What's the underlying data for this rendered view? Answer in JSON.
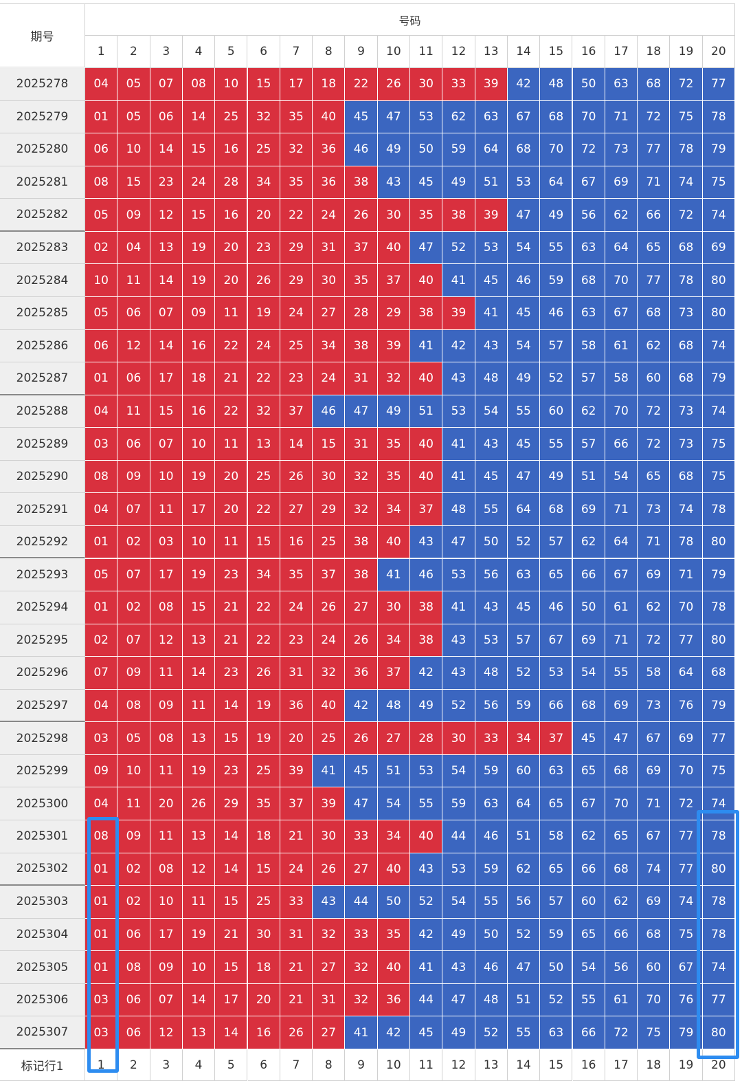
{
  "header": {
    "title": "期号",
    "group": "号码",
    "columns": [
      "1",
      "2",
      "3",
      "4",
      "5",
      "6",
      "7",
      "8",
      "9",
      "10",
      "11",
      "12",
      "13",
      "14",
      "15",
      "16",
      "17",
      "18",
      "19",
      "20"
    ]
  },
  "settings": {
    "split": 40,
    "low_color": "#d9303e",
    "high_color": "#3b66c0"
  },
  "rows": [
    {
      "period": "2025278",
      "numbers": [
        "04",
        "05",
        "07",
        "08",
        "10",
        "15",
        "17",
        "18",
        "22",
        "26",
        "30",
        "33",
        "39",
        "42",
        "48",
        "50",
        "63",
        "68",
        "72",
        "77"
      ]
    },
    {
      "period": "2025279",
      "numbers": [
        "01",
        "05",
        "06",
        "14",
        "25",
        "32",
        "35",
        "40",
        "45",
        "47",
        "53",
        "62",
        "63",
        "67",
        "68",
        "70",
        "71",
        "72",
        "75",
        "78"
      ]
    },
    {
      "period": "2025280",
      "numbers": [
        "06",
        "10",
        "14",
        "15",
        "16",
        "25",
        "32",
        "36",
        "46",
        "49",
        "50",
        "59",
        "64",
        "68",
        "70",
        "72",
        "73",
        "77",
        "78",
        "79"
      ]
    },
    {
      "period": "2025281",
      "numbers": [
        "08",
        "15",
        "23",
        "24",
        "28",
        "34",
        "35",
        "36",
        "38",
        "43",
        "45",
        "49",
        "51",
        "53",
        "64",
        "67",
        "69",
        "71",
        "74",
        "75"
      ]
    },
    {
      "period": "2025282",
      "numbers": [
        "05",
        "09",
        "12",
        "15",
        "16",
        "20",
        "22",
        "24",
        "26",
        "30",
        "35",
        "38",
        "39",
        "47",
        "49",
        "56",
        "62",
        "66",
        "72",
        "74"
      ]
    },
    {
      "period": "2025283",
      "numbers": [
        "02",
        "04",
        "13",
        "19",
        "20",
        "23",
        "29",
        "31",
        "37",
        "40",
        "47",
        "52",
        "53",
        "54",
        "55",
        "63",
        "64",
        "65",
        "68",
        "69"
      ]
    },
    {
      "period": "2025284",
      "numbers": [
        "10",
        "11",
        "14",
        "19",
        "20",
        "26",
        "29",
        "30",
        "35",
        "37",
        "40",
        "41",
        "45",
        "46",
        "59",
        "68",
        "70",
        "77",
        "78",
        "80"
      ]
    },
    {
      "period": "2025285",
      "numbers": [
        "05",
        "06",
        "07",
        "09",
        "11",
        "19",
        "24",
        "27",
        "28",
        "29",
        "38",
        "39",
        "41",
        "45",
        "46",
        "63",
        "67",
        "68",
        "73",
        "80"
      ]
    },
    {
      "period": "2025286",
      "numbers": [
        "06",
        "12",
        "14",
        "16",
        "22",
        "24",
        "25",
        "34",
        "38",
        "39",
        "41",
        "42",
        "43",
        "54",
        "57",
        "58",
        "61",
        "62",
        "68",
        "74"
      ]
    },
    {
      "period": "2025287",
      "numbers": [
        "01",
        "06",
        "17",
        "18",
        "21",
        "22",
        "23",
        "24",
        "31",
        "32",
        "40",
        "43",
        "48",
        "49",
        "52",
        "57",
        "58",
        "60",
        "68",
        "79"
      ]
    },
    {
      "period": "2025288",
      "numbers": [
        "04",
        "11",
        "15",
        "16",
        "22",
        "32",
        "37",
        "46",
        "47",
        "49",
        "51",
        "53",
        "54",
        "55",
        "60",
        "62",
        "70",
        "72",
        "73",
        "74"
      ]
    },
    {
      "period": "2025289",
      "numbers": [
        "03",
        "06",
        "07",
        "10",
        "11",
        "13",
        "14",
        "15",
        "31",
        "35",
        "40",
        "41",
        "43",
        "45",
        "55",
        "57",
        "66",
        "72",
        "73",
        "75"
      ]
    },
    {
      "period": "2025290",
      "numbers": [
        "08",
        "09",
        "10",
        "19",
        "20",
        "25",
        "26",
        "30",
        "32",
        "35",
        "40",
        "41",
        "45",
        "47",
        "49",
        "51",
        "54",
        "65",
        "68",
        "75"
      ]
    },
    {
      "period": "2025291",
      "numbers": [
        "04",
        "07",
        "11",
        "17",
        "20",
        "22",
        "27",
        "29",
        "32",
        "34",
        "37",
        "48",
        "55",
        "64",
        "68",
        "69",
        "71",
        "73",
        "74",
        "78"
      ]
    },
    {
      "period": "2025292",
      "numbers": [
        "01",
        "02",
        "03",
        "10",
        "11",
        "15",
        "16",
        "25",
        "38",
        "40",
        "43",
        "47",
        "50",
        "52",
        "57",
        "62",
        "64",
        "71",
        "78",
        "80"
      ]
    },
    {
      "period": "2025293",
      "numbers": [
        "05",
        "07",
        "17",
        "19",
        "23",
        "34",
        "35",
        "37",
        "38",
        "41",
        "46",
        "53",
        "56",
        "63",
        "65",
        "66",
        "67",
        "69",
        "71",
        "79"
      ]
    },
    {
      "period": "2025294",
      "numbers": [
        "01",
        "02",
        "08",
        "15",
        "21",
        "22",
        "24",
        "26",
        "27",
        "30",
        "38",
        "41",
        "43",
        "45",
        "46",
        "50",
        "61",
        "62",
        "70",
        "78"
      ]
    },
    {
      "period": "2025295",
      "numbers": [
        "02",
        "07",
        "12",
        "13",
        "21",
        "22",
        "23",
        "24",
        "26",
        "34",
        "38",
        "43",
        "53",
        "57",
        "67",
        "69",
        "71",
        "72",
        "77",
        "80"
      ]
    },
    {
      "period": "2025296",
      "numbers": [
        "07",
        "09",
        "11",
        "14",
        "23",
        "26",
        "31",
        "32",
        "36",
        "37",
        "42",
        "43",
        "48",
        "52",
        "53",
        "54",
        "55",
        "58",
        "64",
        "68"
      ]
    },
    {
      "period": "2025297",
      "numbers": [
        "04",
        "08",
        "09",
        "11",
        "14",
        "19",
        "36",
        "40",
        "42",
        "48",
        "49",
        "52",
        "56",
        "59",
        "66",
        "68",
        "69",
        "73",
        "76",
        "79"
      ]
    },
    {
      "period": "2025298",
      "numbers": [
        "03",
        "05",
        "08",
        "13",
        "15",
        "19",
        "20",
        "25",
        "26",
        "27",
        "28",
        "30",
        "33",
        "34",
        "37",
        "45",
        "47",
        "67",
        "69",
        "77"
      ]
    },
    {
      "period": "2025299",
      "numbers": [
        "09",
        "10",
        "11",
        "19",
        "23",
        "25",
        "39",
        "41",
        "45",
        "51",
        "53",
        "54",
        "59",
        "60",
        "63",
        "65",
        "68",
        "69",
        "70",
        "75"
      ]
    },
    {
      "period": "2025300",
      "numbers": [
        "04",
        "11",
        "20",
        "26",
        "29",
        "35",
        "37",
        "39",
        "47",
        "54",
        "55",
        "59",
        "63",
        "64",
        "65",
        "67",
        "70",
        "71",
        "72",
        "74"
      ]
    },
    {
      "period": "2025301",
      "numbers": [
        "08",
        "09",
        "11",
        "13",
        "14",
        "18",
        "21",
        "30",
        "33",
        "34",
        "40",
        "44",
        "46",
        "51",
        "58",
        "62",
        "65",
        "67",
        "77",
        "78"
      ]
    },
    {
      "period": "2025302",
      "numbers": [
        "01",
        "02",
        "08",
        "12",
        "14",
        "15",
        "24",
        "26",
        "27",
        "40",
        "43",
        "53",
        "59",
        "62",
        "65",
        "66",
        "68",
        "74",
        "77",
        "80"
      ]
    },
    {
      "period": "2025303",
      "numbers": [
        "01",
        "02",
        "10",
        "11",
        "15",
        "25",
        "33",
        "43",
        "44",
        "50",
        "52",
        "54",
        "55",
        "56",
        "57",
        "60",
        "62",
        "69",
        "74",
        "78"
      ]
    },
    {
      "period": "2025304",
      "numbers": [
        "01",
        "06",
        "17",
        "19",
        "21",
        "30",
        "31",
        "32",
        "33",
        "35",
        "42",
        "49",
        "50",
        "52",
        "59",
        "65",
        "66",
        "68",
        "75",
        "78"
      ]
    },
    {
      "period": "2025305",
      "numbers": [
        "01",
        "08",
        "09",
        "10",
        "15",
        "18",
        "21",
        "27",
        "32",
        "40",
        "41",
        "43",
        "46",
        "47",
        "50",
        "54",
        "56",
        "60",
        "67",
        "74"
      ]
    },
    {
      "period": "2025306",
      "numbers": [
        "03",
        "06",
        "07",
        "14",
        "17",
        "20",
        "21",
        "31",
        "32",
        "36",
        "44",
        "47",
        "48",
        "51",
        "52",
        "55",
        "61",
        "70",
        "76",
        "77"
      ]
    },
    {
      "period": "2025307",
      "numbers": [
        "03",
        "06",
        "12",
        "13",
        "14",
        "16",
        "26",
        "27",
        "41",
        "42",
        "45",
        "49",
        "52",
        "55",
        "63",
        "66",
        "72",
        "75",
        "79",
        "80"
      ]
    }
  ],
  "footer": {
    "label": "标记行1",
    "columns": [
      "1",
      "2",
      "3",
      "4",
      "5",
      "6",
      "7",
      "8",
      "9",
      "10",
      "11",
      "12",
      "13",
      "14",
      "15",
      "16",
      "17",
      "18",
      "19",
      "20"
    ]
  }
}
